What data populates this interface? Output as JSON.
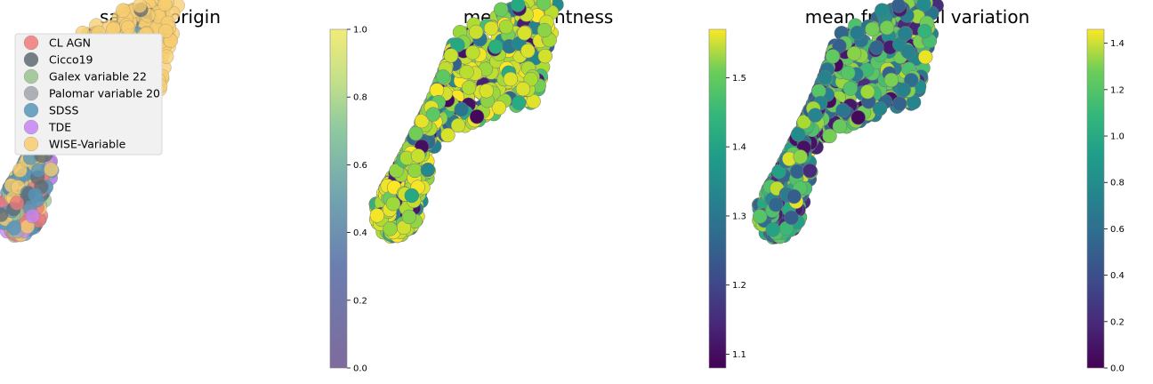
{
  "chart_data": [
    {
      "type": "scatter",
      "title": "sample origin",
      "xlabel": "",
      "ylabel": "",
      "axes_visible": false,
      "legend_placement": "top-left",
      "legend": [
        {
          "label": "CL AGN",
          "color": "#ee7b7b"
        },
        {
          "label": "Cicco19",
          "color": "#606a72"
        },
        {
          "label": "Galex variable 22",
          "color": "#9bc290"
        },
        {
          "label": "Palomar variable 20",
          "color": "#a1a6ad"
        },
        {
          "label": "SDSS",
          "color": "#5596ba"
        },
        {
          "label": "TDE",
          "color": "#c685f2"
        },
        {
          "label": "WISE-Variable",
          "color": "#f7cd6f"
        }
      ],
      "colorbar": {
        "cmap": "viridis-alpha",
        "range": [
          0.0,
          1.0
        ],
        "ticks": [
          "0.0",
          "0.2",
          "0.4",
          "0.6",
          "0.8",
          "1.0"
        ]
      }
    },
    {
      "type": "scatter",
      "title": "mean brightness",
      "xlabel": "",
      "ylabel": "",
      "axes_visible": false,
      "colorbar": {
        "cmap": "viridis",
        "range": [
          1.08,
          1.57
        ],
        "ticks": [
          "1.1",
          "1.2",
          "1.3",
          "1.4",
          "1.5"
        ]
      }
    },
    {
      "type": "scatter",
      "title": "mean fractional variation",
      "xlabel": "",
      "ylabel": "",
      "axes_visible": false,
      "colorbar": {
        "cmap": "viridis",
        "range": [
          0.0,
          1.46
        ],
        "ticks": [
          "0.0",
          "0.2",
          "0.4",
          "0.6",
          "0.8",
          "1.0",
          "1.2",
          "1.4"
        ]
      }
    }
  ]
}
